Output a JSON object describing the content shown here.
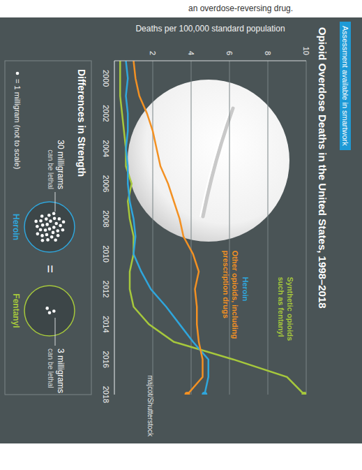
{
  "header_text": "an overdose-reversing drug.",
  "badge": "Assessment available in smartwork",
  "credit": "majcot/Shutterstock",
  "chart_data": {
    "type": "line",
    "title": "Opioid Overdose Deaths in the United States, 1998–2018",
    "y_label": "Deaths per 100,000 standard population",
    "x": [
      1999,
      2000,
      2001,
      2002,
      2003,
      2004,
      2005,
      2006,
      2007,
      2008,
      2009,
      2010,
      2011,
      2012,
      2013,
      2014,
      2015,
      2016,
      2017,
      2018
    ],
    "xlim": [
      1999,
      2018
    ],
    "xticks": [
      2000,
      2002,
      2004,
      2006,
      2008,
      2010,
      2012,
      2014,
      2016,
      2018
    ],
    "ylim": [
      0,
      10
    ],
    "yticks": [
      2,
      4,
      6,
      8,
      10
    ],
    "grid": true,
    "series": [
      {
        "name": "Synthetic opioids such as fentanyl",
        "color": "#a6c83c",
        "marker": "end",
        "values": [
          0.3,
          0.3,
          0.3,
          0.4,
          0.5,
          0.6,
          0.6,
          0.9,
          0.7,
          0.8,
          1.0,
          1.0,
          0.8,
          0.8,
          1.0,
          1.8,
          3.1,
          6.2,
          9.0,
          9.9
        ]
      },
      {
        "name": "Heroin",
        "color": "#2fa6dc",
        "marker": "end",
        "values": [
          0.6,
          0.7,
          0.6,
          0.7,
          0.7,
          0.6,
          0.7,
          0.7,
          0.8,
          1.0,
          1.1,
          1.0,
          1.4,
          1.9,
          2.7,
          3.4,
          4.1,
          4.9,
          4.9,
          4.7
        ]
      },
      {
        "name": "Other opioids, including prescription drugs",
        "color": "#f39123",
        "marker": "end",
        "values": [
          1.0,
          1.1,
          1.3,
          1.7,
          2.0,
          2.2,
          2.4,
          2.8,
          3.1,
          3.4,
          3.6,
          4.1,
          4.4,
          4.2,
          4.3,
          4.3,
          4.4,
          4.6,
          4.6,
          3.8
        ]
      }
    ]
  },
  "strength_panel": {
    "title": "Differences in Strength",
    "equals": "=",
    "unit_note": "= 1 milligram (not to scale)",
    "items": [
      {
        "name": "Heroin",
        "milligrams": 30,
        "label": "30 milligrams",
        "note": "can be lethal",
        "color": "#2fa6dc"
      },
      {
        "name": "Fentanyl",
        "milligrams": 3,
        "label": "3 milligrams",
        "note": "can be lethal",
        "color": "#a6c83c"
      }
    ]
  }
}
